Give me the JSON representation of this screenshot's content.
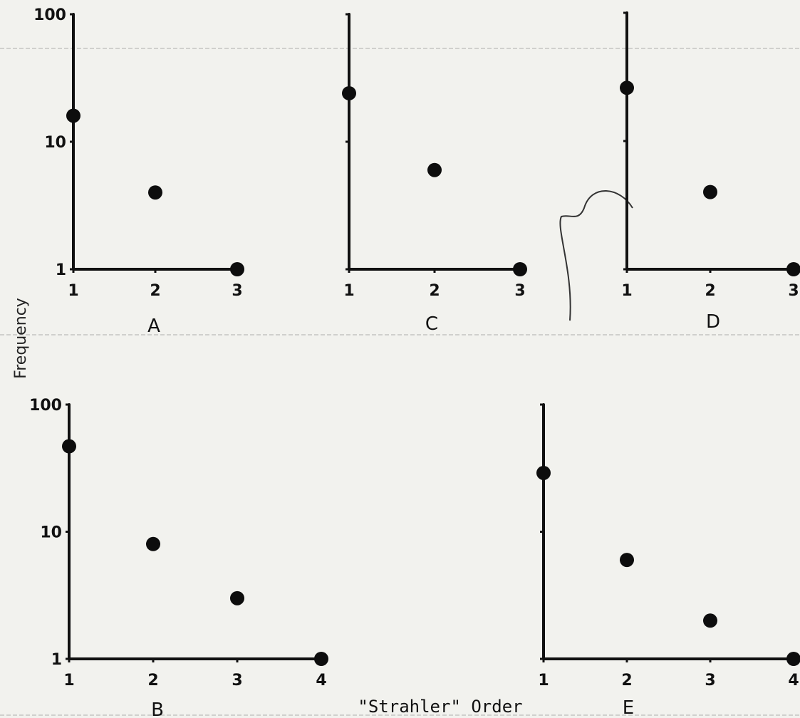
{
  "figure": {
    "ylabel": "Frequency",
    "xlabel": "\"Strahler\" Order"
  },
  "chart_data": [
    {
      "type": "scatter",
      "panel": "A",
      "y_scale": "log",
      "ylim": [
        1,
        100
      ],
      "y_ticks": [
        "100",
        "10",
        "1"
      ],
      "x_ticks": [
        "1",
        "2",
        "3"
      ],
      "x": [
        1,
        2,
        3
      ],
      "y": [
        16,
        4,
        1
      ]
    },
    {
      "type": "scatter",
      "panel": "C",
      "y_scale": "log",
      "ylim": [
        1,
        100
      ],
      "y_ticks": [],
      "x_ticks": [
        "1",
        "2",
        "3"
      ],
      "x": [
        1,
        2,
        3
      ],
      "y": [
        24,
        6,
        1
      ]
    },
    {
      "type": "scatter",
      "panel": "D",
      "y_scale": "log",
      "ylim": [
        1,
        100
      ],
      "y_ticks": [],
      "x_ticks": [
        "1",
        "2",
        "3"
      ],
      "x": [
        1,
        2,
        3
      ],
      "y": [
        26,
        4,
        1
      ]
    },
    {
      "type": "scatter",
      "panel": "B",
      "y_scale": "log",
      "ylim": [
        1,
        100
      ],
      "y_ticks": [
        "100",
        "10",
        "1"
      ],
      "x_ticks": [
        "1",
        "2",
        "3",
        "4"
      ],
      "x": [
        1,
        2,
        3,
        4
      ],
      "y": [
        47,
        8,
        3,
        1
      ]
    },
    {
      "type": "scatter",
      "panel": "E",
      "y_scale": "log",
      "ylim": [
        1,
        100
      ],
      "y_ticks": [],
      "x_ticks": [
        "1",
        "2",
        "3",
        "4"
      ],
      "x": [
        1,
        2,
        3,
        4
      ],
      "y": [
        29,
        6,
        2,
        1
      ]
    }
  ]
}
